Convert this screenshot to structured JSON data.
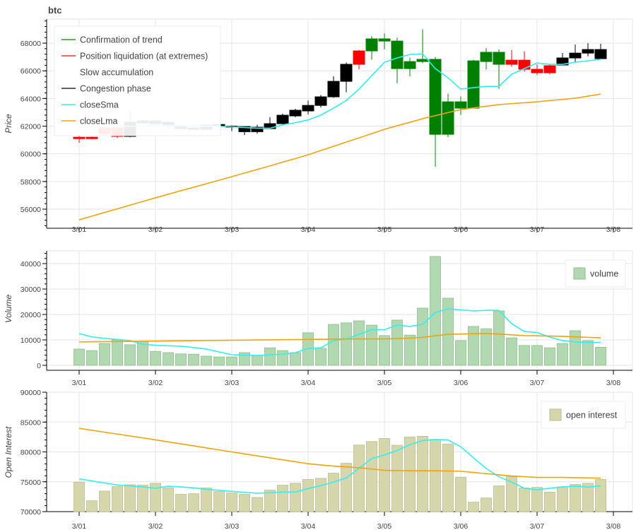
{
  "chart_data": [
    {
      "type": "candlestick",
      "title": "btc",
      "ylabel": "Price",
      "xlabel": "",
      "ylim": [
        54620,
        69740
      ],
      "yticks": [
        56000,
        58000,
        60000,
        62000,
        64000,
        66000,
        68000
      ],
      "xticks": [
        "3/01",
        "3/02",
        "3/03",
        "3/04",
        "3/05",
        "3/06",
        "3/07",
        "3/08"
      ],
      "bars_per_day": 6,
      "legend_position": "top-left",
      "legend": [
        {
          "label": "Confirmation of trend",
          "color": "#008000"
        },
        {
          "label": "Position liquidation (at extremes)",
          "color": "#ff0000"
        },
        {
          "label": "Slow accumulation",
          "color": "#ffffff"
        },
        {
          "label": "Congestion phase",
          "color": "#000000"
        },
        {
          "label": "closeSma",
          "color": "#33eeee"
        },
        {
          "label": "closeLma",
          "color": "#f0a30a"
        }
      ],
      "phase_colors": {
        "trend": "#008000",
        "liquidation": "#ff0000",
        "accumulation": "#ffffff",
        "congestion": "#000000"
      },
      "ohlc": [
        [
          61200,
          61300,
          60800,
          61100
        ],
        [
          61200,
          61250,
          61050,
          61100
        ],
        [
          61880,
          61950,
          61400,
          61440
        ],
        [
          61870,
          61950,
          61150,
          61260
        ],
        [
          61260,
          63100,
          61200,
          62280
        ],
        [
          62230,
          62450,
          62150,
          62380
        ],
        [
          62180,
          62400,
          62100,
          62380
        ],
        [
          62280,
          62350,
          61900,
          62020
        ],
        [
          61970,
          62050,
          61750,
          61820
        ],
        [
          61870,
          61950,
          61700,
          61770
        ],
        [
          61770,
          62150,
          61700,
          62080
        ],
        [
          62070,
          62150,
          62000,
          62120
        ],
        [
          62000,
          62050,
          61650,
          61980
        ],
        [
          61970,
          62000,
          61350,
          61600
        ],
        [
          61920,
          62100,
          61450,
          61600
        ],
        [
          61820,
          62650,
          61800,
          62180
        ],
        [
          62180,
          62900,
          62100,
          62790
        ],
        [
          62740,
          63250,
          62650,
          63150
        ],
        [
          63100,
          63850,
          62850,
          63500
        ],
        [
          63500,
          64250,
          63350,
          64120
        ],
        [
          64120,
          65600,
          64050,
          65240
        ],
        [
          65240,
          66600,
          64450,
          66470
        ],
        [
          67440,
          67500,
          66100,
          66470
        ],
        [
          67440,
          68500,
          66800,
          68310
        ],
        [
          68150,
          68700,
          67550,
          68310
        ],
        [
          66160,
          68400,
          65100,
          68150
        ],
        [
          66160,
          66950,
          65600,
          66670
        ],
        [
          66670,
          69000,
          66550,
          66830
        ],
        [
          61410,
          67000,
          59060,
          66830
        ],
        [
          61410,
          64350,
          61200,
          63760
        ],
        [
          63300,
          64150,
          62800,
          63760
        ],
        [
          63300,
          66800,
          63300,
          66720
        ],
        [
          66670,
          67650,
          66100,
          67340
        ],
        [
          66470,
          67550,
          64700,
          67340
        ],
        [
          66770,
          67500,
          66300,
          66470
        ],
        [
          66770,
          67400,
          65950,
          66110
        ],
        [
          66110,
          66470,
          65690,
          65860
        ],
        [
          66370,
          66470,
          65740,
          65860
        ],
        [
          66420,
          67290,
          66420,
          66930
        ],
        [
          66930,
          67900,
          66620,
          67280
        ],
        [
          67280,
          68000,
          67050,
          67540
        ],
        [
          66880,
          67950,
          66880,
          67540
        ]
      ],
      "phases": [
        "liquidation",
        "liquidation",
        "liquidation",
        "liquidation",
        "congestion",
        "congestion",
        "congestion",
        "congestion",
        "congestion",
        "congestion",
        "congestion",
        "congestion",
        "congestion",
        "congestion",
        "congestion",
        "congestion",
        "congestion",
        "congestion",
        "congestion",
        "congestion",
        "congestion",
        "congestion",
        "liquidation",
        "trend",
        "trend",
        "trend",
        "trend",
        "trend",
        "trend",
        "trend",
        "trend",
        "trend",
        "trend",
        "trend",
        "liquidation",
        "liquidation",
        "liquidation",
        "liquidation",
        "congestion",
        "congestion",
        "congestion",
        "congestion"
      ],
      "closeSma": [
        61900,
        61920,
        61950,
        61980,
        62000,
        62020,
        62050,
        62050,
        62050,
        62020,
        62000,
        61980,
        61950,
        61900,
        61850,
        61850,
        62100,
        62250,
        62450,
        62800,
        63300,
        63860,
        64680,
        65650,
        66620,
        66930,
        67180,
        67230,
        66160,
        65500,
        64680,
        64780,
        64880,
        64880,
        65750,
        66160,
        66570,
        66470,
        66470,
        66620,
        66720,
        66830
      ],
      "closeLma": [
        55230,
        55495,
        55760,
        56025,
        56290,
        56555,
        56820,
        57075,
        57330,
        57585,
        57840,
        58095,
        58350,
        58610,
        58870,
        59130,
        59400,
        59660,
        59930,
        60240,
        60540,
        60850,
        61150,
        61460,
        61770,
        62030,
        62280,
        62540,
        62760,
        62980,
        63200,
        63320,
        63440,
        63560,
        63630,
        63690,
        63760,
        63850,
        63930,
        64020,
        64170,
        64320
      ]
    },
    {
      "type": "bar",
      "ylabel": "Volume",
      "ylim": [
        -1950,
        45000
      ],
      "yticks": [
        0,
        10000,
        20000,
        30000,
        40000
      ],
      "xticks": [
        "3/01",
        "3/02",
        "3/03",
        "3/04",
        "3/05",
        "3/06",
        "3/07",
        "3/08"
      ],
      "legend_position": "top-right",
      "legend": [
        {
          "label": "volume",
          "color": "#b2d8b2"
        }
      ],
      "values": [
        6400,
        5800,
        8600,
        10000,
        8100,
        9400,
        5500,
        5000,
        4500,
        4400,
        3600,
        3300,
        3300,
        5000,
        3900,
        6900,
        5800,
        5000,
        12800,
        6700,
        16100,
        16700,
        17500,
        15800,
        11700,
        17800,
        11900,
        22500,
        42800,
        26400,
        9700,
        15300,
        14400,
        21400,
        10800,
        7800,
        7800,
        6900,
        8600,
        13600,
        9700,
        7100
      ],
      "sma": [
        12500,
        11200,
        10600,
        10200,
        9700,
        8300,
        7900,
        7700,
        7500,
        7000,
        6400,
        5300,
        4200,
        4000,
        3900,
        4100,
        4400,
        5000,
        6700,
        6900,
        9700,
        10300,
        12200,
        14000,
        14000,
        15800,
        15300,
        16100,
        20800,
        22200,
        21800,
        21400,
        21600,
        21600,
        16400,
        13300,
        12900,
        11100,
        9700,
        9200,
        9000,
        9000
      ],
      "lma": [
        9200,
        9255,
        9310,
        9365,
        9420,
        9475,
        9530,
        9585,
        9640,
        9695,
        9750,
        9805,
        9860,
        9915,
        9970,
        10025,
        10080,
        10135,
        10190,
        10245,
        10300,
        10350,
        10400,
        10400,
        10400,
        10500,
        10700,
        11000,
        11600,
        12200,
        12300,
        12400,
        12500,
        12300,
        12000,
        11700,
        11600,
        11500,
        11400,
        11200,
        11000,
        10800
      ]
    },
    {
      "type": "bar",
      "ylabel": "Open Interest",
      "ylim": [
        70000,
        90000
      ],
      "yticks": [
        70000,
        75000,
        80000,
        85000,
        90000
      ],
      "xticks": [
        "3/01",
        "3/02",
        "3/03",
        "3/04",
        "3/05",
        "3/06",
        "3/07",
        "3/08"
      ],
      "legend_position": "top-right",
      "legend": [
        {
          "label": "open interest",
          "color": "#d6d6ad"
        }
      ],
      "values": [
        74940,
        71820,
        73440,
        74190,
        74500,
        74430,
        74740,
        73950,
        72920,
        73000,
        73950,
        73360,
        73120,
        72890,
        72370,
        73600,
        74430,
        74740,
        75380,
        75570,
        76440,
        78100,
        81150,
        81740,
        82250,
        81110,
        82490,
        82610,
        82100,
        81300,
        75770,
        71580,
        72290,
        74310,
        75850,
        73950,
        74070,
        73280,
        74150,
        74550,
        74740,
        75380
      ],
      "sma": [
        75490,
        75150,
        74800,
        74470,
        74310,
        74150,
        73910,
        74270,
        74130,
        73990,
        73750,
        73570,
        73400,
        73240,
        73080,
        73180,
        73280,
        73280,
        73870,
        74350,
        74940,
        75650,
        77230,
        78890,
        79490,
        80240,
        81220,
        81900,
        82060,
        82020,
        80870,
        79010,
        77230,
        75850,
        74940,
        73910,
        73680,
        73910,
        74150,
        74270,
        74110,
        74310
      ],
      "lma": [
        83950,
        83630,
        83300,
        82990,
        82670,
        82350,
        82020,
        81680,
        81350,
        81010,
        80670,
        80340,
        80000,
        79670,
        79340,
        79010,
        78680,
        78350,
        78020,
        77820,
        77630,
        77490,
        77350,
        77130,
        76920,
        76880,
        76840,
        76840,
        76840,
        76800,
        76760,
        76560,
        76360,
        76160,
        75970,
        75850,
        75730,
        75730,
        75730,
        75690,
        75650,
        75610
      ]
    }
  ],
  "colors": {
    "sma": "#33eeee",
    "lma": "#f0a30a",
    "volume_fill": "#b2d8b2",
    "volume_edge": "#8cc08c",
    "oi_fill": "#d6d6ad",
    "oi_edge": "#bdbd8f",
    "grid": "#e5e5e5"
  }
}
